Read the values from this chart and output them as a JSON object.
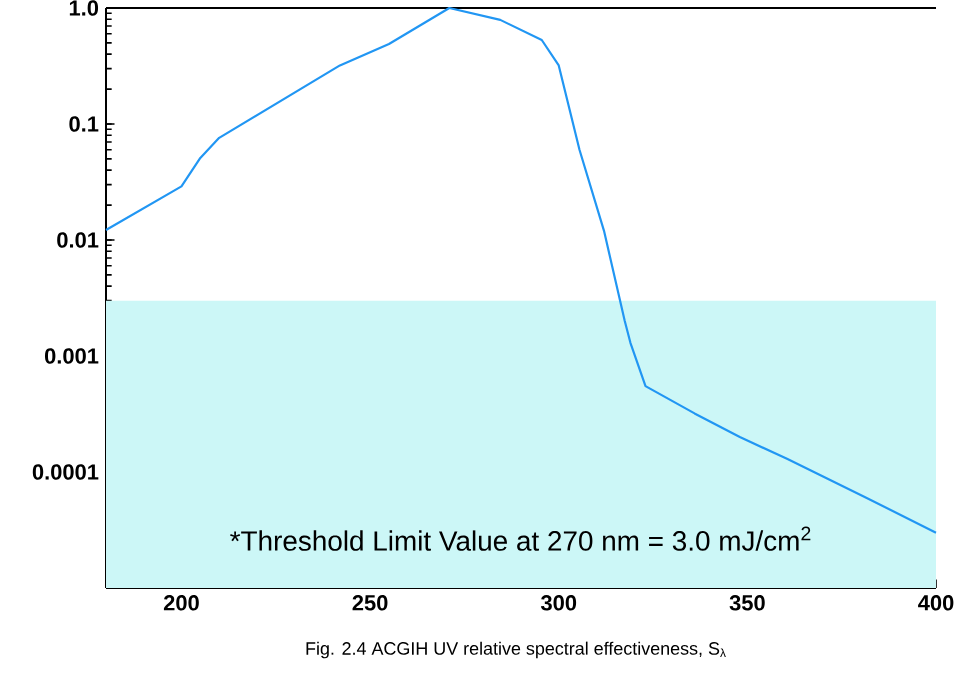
{
  "chart_data": {
    "type": "line",
    "title": "Fig. 2.4  ACGIH UV relative spectral effectiveness, S$_{λ}$",
    "annotations": [
      "*Threshold Limit Value at 270 nm = 3.0 mJ/cm$^{2}$"
    ],
    "log": "y",
    "grid": false,
    "marker": "none",
    "line_style": "solid",
    "xlim": [
      180,
      400
    ],
    "xticks": [
      200,
      250,
      300,
      350,
      400
    ],
    "ylim": [
      1e-05,
      1
    ],
    "yticks": [
      {
        "value": 1e-05,
        "label": null
      },
      {
        "value": 0.0001,
        "label": "0.0001"
      },
      {
        "value": 0.001,
        "label": "0.001"
      },
      {
        "value": 0.01,
        "label": "0.01"
      },
      {
        "value": 0.1,
        "label": "0.1"
      },
      {
        "value": 1,
        "label": "1.0"
      }
    ],
    "bands": [
      {
        "axis": "y",
        "from": 1e-05,
        "to": 0.003,
        "color": "#ccf7f7"
      }
    ],
    "series": [
      {
        "color": "#2196f3",
        "x": [
          180,
          200,
          205,
          210,
          242,
          255,
          271,
          284.5,
          295.5,
          300,
          305.5,
          312,
          317.5,
          319,
          323,
          336,
          348,
          360.5,
          381.5,
          400
        ],
        "values": [
          0.0122,
          0.029,
          0.051,
          0.076,
          0.32,
          0.49,
          1.0,
          0.79,
          0.53,
          0.32,
          0.06,
          0.012,
          0.002,
          0.0013,
          0.00055,
          0.00032,
          0.0002,
          0.00013,
          6e-05,
          3e-05
        ]
      }
    ]
  }
}
